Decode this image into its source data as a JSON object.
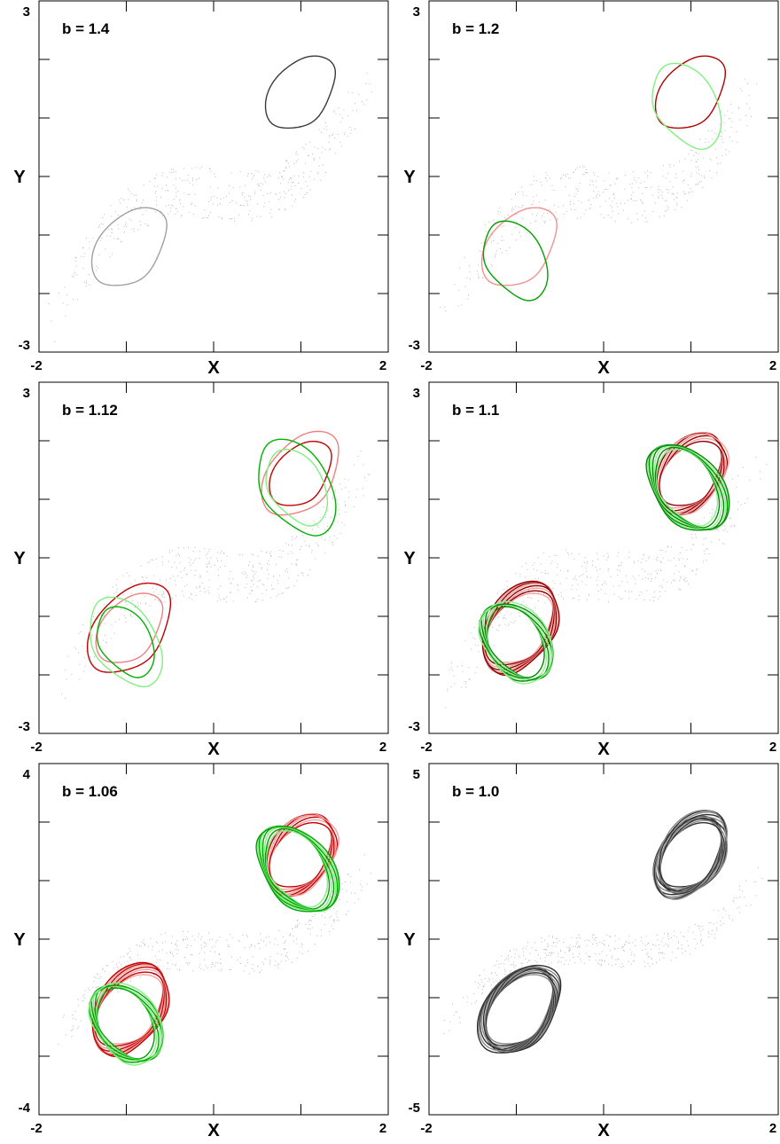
{
  "chart_data": [
    {
      "type": "line",
      "title": "b = 1.4",
      "xlabel": "X",
      "ylabel": "Y",
      "xlim": [
        -2,
        2
      ],
      "ylim": [
        -3,
        3
      ],
      "x_tick_labels": [
        "-2",
        "2"
      ],
      "y_tick_labels": [
        "3",
        "-3"
      ],
      "series": [
        {
          "colors": [
            "#3a3a3a",
            "#a0a0a0"
          ],
          "loops": 1
        }
      ]
    },
    {
      "type": "line",
      "title": "b = 1.2",
      "xlabel": "X",
      "ylabel": "Y",
      "xlim": [
        -2,
        2
      ],
      "ylim": [
        -3,
        3
      ],
      "x_tick_labels": [
        "-2",
        "2"
      ],
      "y_tick_labels": [
        "3",
        "-3"
      ],
      "series": [
        {
          "colors": [
            "#b00000",
            "#f39090"
          ],
          "loops": 1
        },
        {
          "colors": [
            "#00a000",
            "#80f080"
          ],
          "loops": 1
        }
      ]
    },
    {
      "type": "line",
      "title": "b = 1.12",
      "xlabel": "X",
      "ylabel": "Y",
      "xlim": [
        -2,
        2
      ],
      "ylim": [
        -3,
        3
      ],
      "x_tick_labels": [
        "-2",
        "2"
      ],
      "y_tick_labels": [
        "3",
        "-3"
      ],
      "series": [
        {
          "colors": [
            "#c00000",
            "#f08080"
          ],
          "loops": 2
        },
        {
          "colors": [
            "#00b000",
            "#80f080"
          ],
          "loops": 2
        }
      ]
    },
    {
      "type": "line",
      "title": "b = 1.1",
      "xlabel": "X",
      "ylabel": "Y",
      "xlim": [
        -2,
        2
      ],
      "ylim": [
        -3,
        3
      ],
      "x_tick_labels": [
        "-2",
        "2"
      ],
      "y_tick_labels": [
        "3",
        "-3"
      ],
      "series": [
        {
          "colors": [
            "#900000",
            "#f5a0a0"
          ],
          "loops": 8
        },
        {
          "colors": [
            "#008800",
            "#90f090"
          ],
          "loops": 8
        }
      ]
    },
    {
      "type": "line",
      "title": "b = 1.06",
      "xlabel": "X",
      "ylabel": "Y",
      "xlim": [
        -2,
        2
      ],
      "ylim": [
        -4,
        4
      ],
      "x_tick_labels": [
        "-2",
        "2"
      ],
      "y_tick_labels": [
        "4",
        "-4"
      ],
      "series": [
        {
          "colors": [
            "#c00000",
            "#f5a0a0"
          ],
          "loops": 8
        },
        {
          "colors": [
            "#00a000",
            "#80f080"
          ],
          "loops": 8
        }
      ]
    },
    {
      "type": "line",
      "title": "b = 1.0",
      "xlabel": "X",
      "ylabel": "Y",
      "xlim": [
        -2,
        2
      ],
      "ylim": [
        -5,
        5
      ],
      "x_tick_labels": [
        "-2",
        "2"
      ],
      "y_tick_labels": [
        "5",
        "-5"
      ],
      "series": [
        {
          "colors": [
            "#303030",
            "#8a8a8a"
          ],
          "loops": 14
        }
      ]
    }
  ]
}
